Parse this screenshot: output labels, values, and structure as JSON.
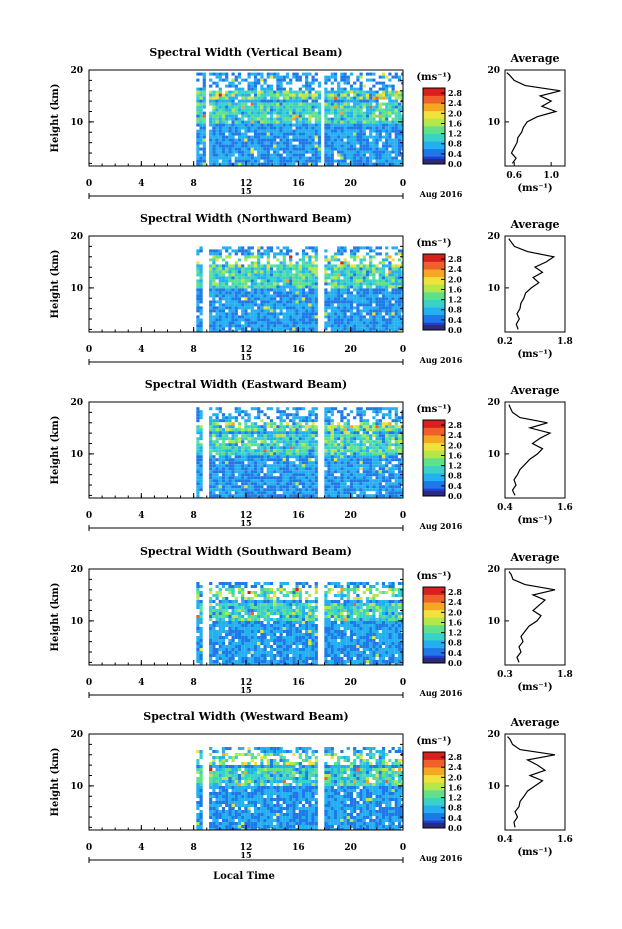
{
  "chart_data": [
    {
      "type": "heatmap",
      "title": "Spectral Width (Vertical Beam)",
      "ylabel": "Height (km)",
      "yticks": [
        "20",
        "10"
      ],
      "ylim": [
        1.5,
        20
      ],
      "xticks": [
        "0",
        "4",
        "8",
        "12",
        "16",
        "20",
        "0"
      ],
      "xlim": [
        0,
        24
      ],
      "date_day": "15",
      "date_label": "Aug 2016",
      "colorbar_unit": "(ms⁻¹)",
      "colorbar_ticks": [
        "2.8",
        "2.4",
        "2.0",
        "1.6",
        "1.2",
        "0.8",
        "0.4",
        "0.0"
      ],
      "colorbar_range": [
        0,
        3.0
      ],
      "data_start_hour": 8.2,
      "gaps_hours": [
        [
          8.7,
          9.0
        ],
        [
          17.5,
          17.9
        ]
      ],
      "top_km": 19.5,
      "profile": {
        "title": "Average",
        "xticks": [
          "0.6",
          "1.0"
        ],
        "xlim": [
          0.5,
          1.15
        ],
        "xlabel": "(ms⁻¹)",
        "yticks": [
          "20",
          "10"
        ],
        "height_km": [
          2,
          3,
          4,
          5,
          6,
          7,
          8,
          9,
          10,
          11,
          12,
          13,
          14,
          15,
          16,
          17,
          18,
          19,
          19.5
        ],
        "values": [
          0.58,
          0.62,
          0.57,
          0.6,
          0.63,
          0.64,
          0.68,
          0.7,
          0.74,
          0.85,
          1.05,
          0.9,
          1.0,
          0.88,
          1.1,
          0.72,
          0.6,
          0.55,
          0.52
        ]
      }
    },
    {
      "type": "heatmap",
      "title": "Spectral Width (Northward Beam)",
      "ylabel": "Height (km)",
      "yticks": [
        "20",
        "10"
      ],
      "ylim": [
        1.5,
        20
      ],
      "xticks": [
        "0",
        "4",
        "8",
        "12",
        "16",
        "20",
        "0"
      ],
      "xlim": [
        0,
        24
      ],
      "date_day": "15",
      "date_label": "Aug 2016",
      "colorbar_unit": "(ms⁻¹)",
      "colorbar_ticks": [
        "2.8",
        "2.4",
        "2.0",
        "1.6",
        "1.2",
        "0.8",
        "0.4",
        "0.0"
      ],
      "colorbar_range": [
        0,
        3.0
      ],
      "data_start_hour": 8.2,
      "gaps_hours": [
        [
          8.6,
          9.0
        ],
        [
          17.4,
          17.8
        ]
      ],
      "top_km": 18.0,
      "profile": {
        "title": "Average",
        "xticks": [
          "0.2",
          "1.8"
        ],
        "xlim": [
          0.2,
          1.8
        ],
        "xlabel": "(ms⁻¹)",
        "yticks": [
          "20",
          "10"
        ],
        "height_km": [
          2,
          3,
          4,
          5,
          6,
          7,
          8,
          9,
          10,
          11,
          12,
          13,
          14,
          15,
          16,
          17,
          18,
          19,
          19.5
        ],
        "values": [
          0.55,
          0.5,
          0.58,
          0.52,
          0.6,
          0.62,
          0.7,
          0.75,
          0.9,
          1.1,
          0.95,
          1.2,
          1.0,
          1.3,
          1.5,
          0.8,
          0.45,
          0.35,
          0.3
        ]
      }
    },
    {
      "type": "heatmap",
      "title": "Spectral Width (Eastward Beam)",
      "ylabel": "Height (km)",
      "yticks": [
        "20",
        "10"
      ],
      "ylim": [
        1.5,
        20
      ],
      "xticks": [
        "0",
        "4",
        "8",
        "12",
        "16",
        "20",
        "0"
      ],
      "xlim": [
        0,
        24
      ],
      "date_day": "15",
      "date_label": "Aug 2016",
      "colorbar_unit": "(ms⁻¹)",
      "colorbar_ticks": [
        "2.8",
        "2.4",
        "2.0",
        "1.6",
        "1.2",
        "0.8",
        "0.4",
        "0.0"
      ],
      "colorbar_range": [
        0,
        3.0
      ],
      "data_start_hour": 8.2,
      "gaps_hours": [
        [
          8.6,
          9.0
        ],
        [
          17.4,
          17.8
        ]
      ],
      "top_km": 19.0,
      "profile": {
        "title": "Average",
        "xticks": [
          "0.4",
          "1.6"
        ],
        "xlim": [
          0.4,
          1.6
        ],
        "xlabel": "(ms⁻¹)",
        "yticks": [
          "20",
          "10"
        ],
        "height_km": [
          2,
          3,
          4,
          5,
          6,
          7,
          8,
          9,
          10,
          11,
          12,
          13,
          14,
          15,
          16,
          17,
          18,
          19,
          19.5
        ],
        "values": [
          0.6,
          0.55,
          0.62,
          0.58,
          0.65,
          0.7,
          0.8,
          0.9,
          1.05,
          1.15,
          0.95,
          1.1,
          1.3,
          0.9,
          1.25,
          0.7,
          0.55,
          0.5,
          0.48
        ]
      }
    },
    {
      "type": "heatmap",
      "title": "Spectral Width (Southward Beam)",
      "ylabel": "Height (km)",
      "yticks": [
        "20",
        "10"
      ],
      "ylim": [
        1.5,
        20
      ],
      "xticks": [
        "0",
        "4",
        "8",
        "12",
        "16",
        "20",
        "0"
      ],
      "xlim": [
        0,
        24
      ],
      "date_day": "15",
      "date_label": "Aug 2016",
      "colorbar_unit": "(ms⁻¹)",
      "colorbar_ticks": [
        "2.8",
        "2.4",
        "2.0",
        "1.6",
        "1.2",
        "0.8",
        "0.4",
        "0.0"
      ],
      "colorbar_range": [
        0,
        3.0
      ],
      "data_start_hour": 8.2,
      "gaps_hours": [
        [
          8.6,
          9.0
        ],
        [
          17.4,
          17.8
        ]
      ],
      "top_km": 17.5,
      "profile": {
        "title": "Average",
        "xticks": [
          "0.3",
          "1.8"
        ],
        "xlim": [
          0.3,
          1.8
        ],
        "xlabel": "(ms⁻¹)",
        "yticks": [
          "20",
          "10"
        ],
        "height_km": [
          2,
          3,
          4,
          5,
          6,
          7,
          8,
          9,
          10,
          11,
          12,
          13,
          14,
          15,
          16,
          17,
          18,
          19,
          19.5
        ],
        "values": [
          0.65,
          0.6,
          0.7,
          0.65,
          0.75,
          0.7,
          0.8,
          0.9,
          1.1,
          1.2,
          1.0,
          1.15,
          1.3,
          1.0,
          1.55,
          0.8,
          0.5,
          0.45,
          0.4
        ]
      }
    },
    {
      "type": "heatmap",
      "title": "Spectral Width (Westward Beam)",
      "ylabel": "Height (km)",
      "yticks": [
        "20",
        "10"
      ],
      "ylim": [
        1.5,
        20
      ],
      "xticks": [
        "0",
        "4",
        "8",
        "12",
        "16",
        "20",
        "0"
      ],
      "xlim": [
        0,
        24
      ],
      "date_day": "15",
      "date_label": "Aug 2016",
      "colorbar_unit": "(ms⁻¹)",
      "colorbar_ticks": [
        "2.8",
        "2.4",
        "2.0",
        "1.6",
        "1.2",
        "0.8",
        "0.4",
        "0.0"
      ],
      "colorbar_range": [
        0,
        3.0
      ],
      "data_start_hour": 8.2,
      "gaps_hours": [
        [
          8.6,
          9.0
        ],
        [
          17.4,
          17.8
        ]
      ],
      "top_km": 17.5,
      "profile": {
        "title": "Average",
        "xticks": [
          "0.4",
          "1.6"
        ],
        "xlim": [
          0.4,
          1.6
        ],
        "xlabel": "(ms⁻¹)",
        "yticks": [
          "20",
          "10"
        ],
        "height_km": [
          2,
          3,
          4,
          5,
          6,
          7,
          8,
          9,
          10,
          11,
          12,
          13,
          14,
          15,
          16,
          17,
          18,
          19,
          19.5
        ],
        "values": [
          0.6,
          0.58,
          0.65,
          0.6,
          0.68,
          0.7,
          0.78,
          0.85,
          1.0,
          1.15,
          0.9,
          1.2,
          1.05,
          0.85,
          1.4,
          0.7,
          0.55,
          0.5,
          0.45
        ]
      }
    }
  ],
  "footer": {
    "xlabel": "Local Time"
  },
  "colormap": [
    "#2b2b7a",
    "#1f3fd0",
    "#1f78e8",
    "#22b0f0",
    "#3ad2c8",
    "#5fe08a",
    "#b4e84a",
    "#f0e23a",
    "#f5a623",
    "#f0602a",
    "#d8201f"
  ]
}
